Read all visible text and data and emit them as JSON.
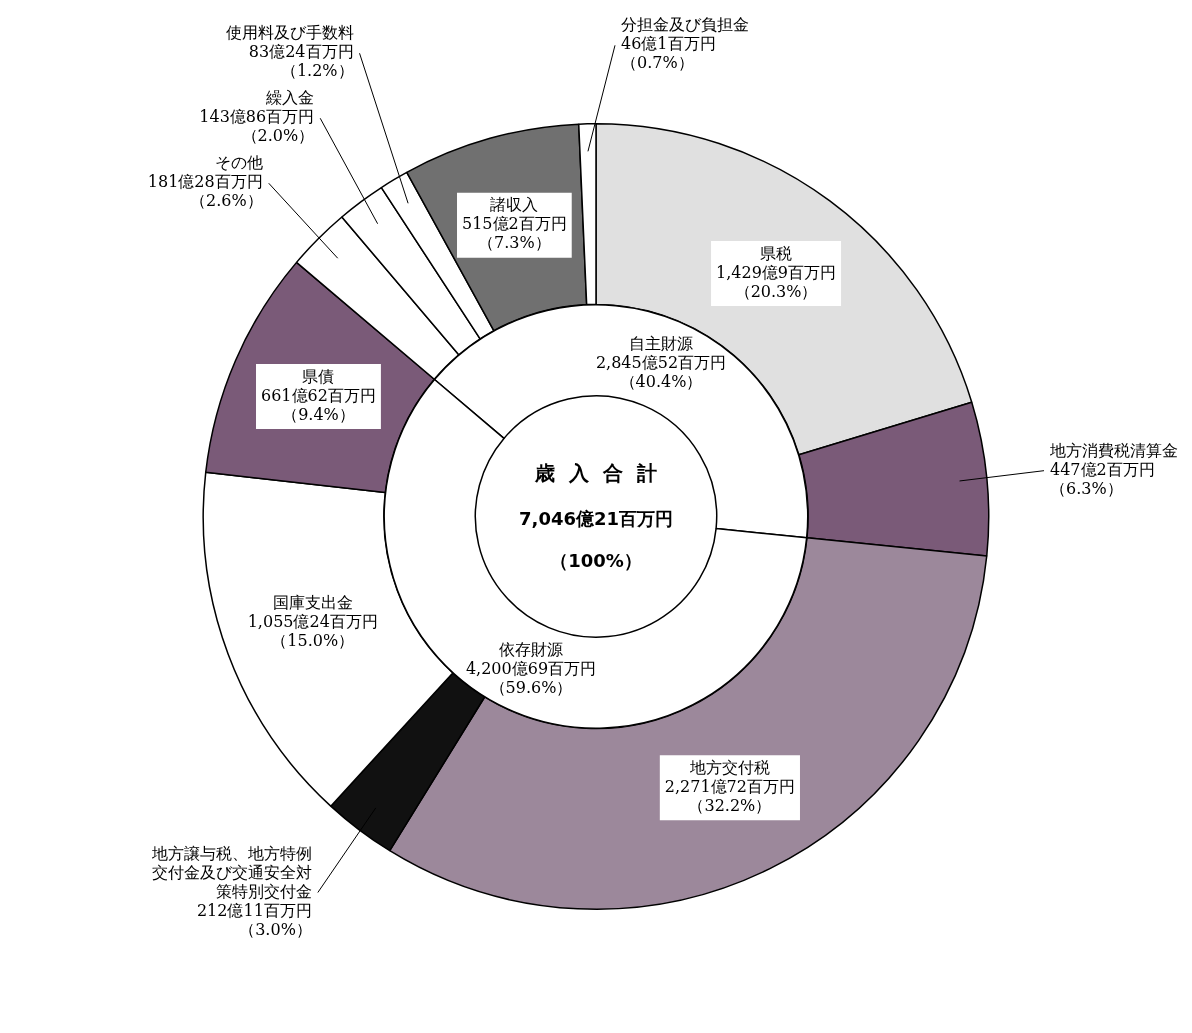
{
  "chart_data": [
    {
      "type": "donut",
      "categories": [
        "県税",
        "地方消費税清算金",
        "地方交付税",
        "地方譲与税、地方特例交付金及び交通安全対策特別交付金",
        "国庫支出金",
        "県債",
        "その他",
        "繰入金",
        "使用料及び手数料",
        "諸収入",
        "分担金及び負担金"
      ],
      "values": [
        20.3,
        6.3,
        32.2,
        3.0,
        15.0,
        9.4,
        2.6,
        2.0,
        1.2,
        7.3,
        0.7
      ],
      "colors": [
        "#e0e0e0",
        "#7a5a78",
        "#9c889b",
        "#111111",
        "#ffffff",
        "#7a5a78",
        "#ffffff",
        "#ffffff",
        "#ffffff",
        "#707070",
        "#ffffff"
      ],
      "value_labels": [
        "1,429億9百万円（20.3%）",
        "447億2百万円（6.3%）",
        "2,271億72百万円（32.2%）",
        "212億11百万円（3.0%）",
        "1,055億24百万円（15.0%）",
        "661億62百万円（9.4%）",
        "181億28百万円（2.6%）",
        "143億86百万円（2.0%）",
        "83億24百万円（1.2%）",
        "515億2百万円（7.3%）",
        "46億1百万円（0.7%）"
      ]
    },
    {
      "type": "donut",
      "title": "歳入合計",
      "annotations": [
        "7,046億21百万円",
        "（100%）"
      ],
      "categories": [
        "自主財源",
        "依存財源"
      ],
      "values": [
        40.4,
        59.6
      ],
      "colors": [
        "#ffffff",
        "#ffffff"
      ],
      "value_labels": [
        "2,845億52百万円（40.4%）",
        "4,200億69百万円（59.6%）"
      ]
    }
  ]
}
